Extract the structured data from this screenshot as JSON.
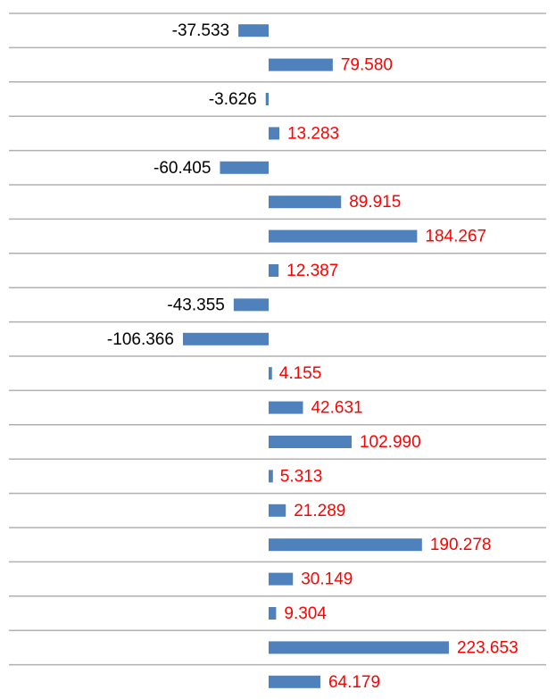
{
  "chart_data": {
    "type": "bar",
    "orientation": "horizontal",
    "color": "#4f81bd",
    "label_colors": {
      "positive": "#ff0000",
      "negative": "#000000"
    },
    "values": [
      -37.533,
      79.58,
      -3.626,
      13.283,
      -60.405,
      89.915,
      184.267,
      12.387,
      -43.355,
      -106.366,
      4.155,
      42.631,
      102.99,
      5.313,
      21.289,
      190.278,
      30.149,
      9.304,
      223.653,
      64.179
    ],
    "value_labels": [
      "-37.533",
      "79.580",
      "-3.626",
      "13.283",
      "-60.405",
      "89.915",
      "184.267",
      "12.387",
      "-43.355",
      "-106.366",
      "4.155",
      "42.631",
      "102.990",
      "5.313",
      "21.289",
      "190.278",
      "30.149",
      "9.304",
      "223.653",
      "64.179"
    ]
  }
}
